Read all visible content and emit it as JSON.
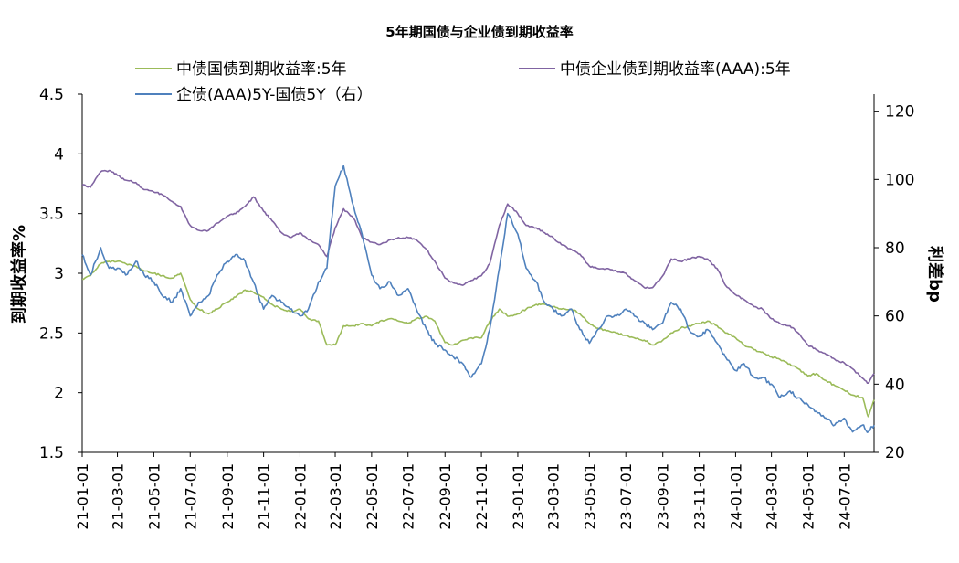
{
  "chart_data": {
    "type": "line",
    "title": "5年期国债与企业债到期收益率",
    "ylabel_left": "到期收益率%",
    "ylabel_right": "利差bp",
    "y_left": {
      "min": 1.5,
      "max": 4.5,
      "ticks": [
        "1.5",
        "2",
        "2.5",
        "3",
        "3.5",
        "4",
        "4.5"
      ]
    },
    "y_right": {
      "min": 20,
      "max": 125,
      "ticks": [
        "20",
        "40",
        "60",
        "80",
        "100",
        "120"
      ]
    },
    "x_ticks": [
      "21-01-01",
      "21-03-01",
      "21-05-01",
      "21-07-01",
      "21-09-01",
      "21-11-01",
      "22-01-01",
      "22-03-01",
      "22-05-01",
      "22-07-01",
      "22-09-01",
      "22-11-01",
      "23-01-01",
      "23-03-01",
      "23-05-01",
      "23-07-01",
      "23-09-01",
      "23-11-01",
      "24-01-01",
      "24-03-01",
      "24-05-01",
      "24-07-01"
    ],
    "x_range": [
      "2021-01-01",
      "2024-08-20"
    ],
    "legend_position": "top",
    "series": [
      {
        "name": "中债国债到期收益率:5年",
        "axis": "left",
        "color": "#9bbb59",
        "x": [
          "2021-01-01",
          "2021-01-15",
          "2021-02-01",
          "2021-02-15",
          "2021-03-01",
          "2021-03-15",
          "2021-04-01",
          "2021-04-15",
          "2021-05-01",
          "2021-05-15",
          "2021-06-01",
          "2021-06-15",
          "2021-07-01",
          "2021-07-15",
          "2021-08-01",
          "2021-08-15",
          "2021-09-01",
          "2021-09-15",
          "2021-10-01",
          "2021-10-15",
          "2021-11-01",
          "2021-11-15",
          "2021-12-01",
          "2021-12-15",
          "2022-01-01",
          "2022-01-15",
          "2022-02-01",
          "2022-02-15",
          "2022-03-01",
          "2022-03-15",
          "2022-04-01",
          "2022-04-15",
          "2022-05-01",
          "2022-05-15",
          "2022-06-01",
          "2022-06-15",
          "2022-07-01",
          "2022-07-15",
          "2022-08-01",
          "2022-08-15",
          "2022-09-01",
          "2022-09-15",
          "2022-10-01",
          "2022-10-15",
          "2022-11-01",
          "2022-11-15",
          "2022-12-01",
          "2022-12-15",
          "2023-01-01",
          "2023-01-15",
          "2023-02-01",
          "2023-02-15",
          "2023-03-01",
          "2023-03-15",
          "2023-04-01",
          "2023-04-15",
          "2023-05-01",
          "2023-05-15",
          "2023-06-01",
          "2023-06-15",
          "2023-07-01",
          "2023-07-15",
          "2023-08-01",
          "2023-08-15",
          "2023-09-01",
          "2023-09-15",
          "2023-10-01",
          "2023-10-15",
          "2023-11-01",
          "2023-11-15",
          "2023-12-01",
          "2023-12-15",
          "2024-01-01",
          "2024-01-15",
          "2024-02-01",
          "2024-02-15",
          "2024-03-01",
          "2024-03-15",
          "2024-04-01",
          "2024-04-15",
          "2024-05-01",
          "2024-05-15",
          "2024-06-01",
          "2024-06-15",
          "2024-07-01",
          "2024-07-15",
          "2024-08-01",
          "2024-08-10",
          "2024-08-20"
        ],
        "values": [
          2.95,
          2.98,
          3.08,
          3.1,
          3.1,
          3.08,
          3.06,
          3.02,
          3.0,
          2.98,
          2.96,
          3.0,
          2.78,
          2.7,
          2.66,
          2.7,
          2.76,
          2.8,
          2.86,
          2.84,
          2.8,
          2.74,
          2.7,
          2.68,
          2.7,
          2.62,
          2.6,
          2.4,
          2.4,
          2.56,
          2.56,
          2.58,
          2.56,
          2.6,
          2.62,
          2.6,
          2.58,
          2.62,
          2.64,
          2.6,
          2.42,
          2.4,
          2.44,
          2.46,
          2.46,
          2.6,
          2.7,
          2.64,
          2.66,
          2.7,
          2.74,
          2.74,
          2.72,
          2.7,
          2.7,
          2.66,
          2.58,
          2.54,
          2.52,
          2.5,
          2.48,
          2.46,
          2.44,
          2.4,
          2.44,
          2.5,
          2.54,
          2.56,
          2.58,
          2.6,
          2.56,
          2.5,
          2.46,
          2.4,
          2.36,
          2.34,
          2.3,
          2.28,
          2.24,
          2.2,
          2.14,
          2.16,
          2.1,
          2.06,
          2.02,
          1.98,
          1.96,
          1.8,
          1.94
        ]
      },
      {
        "name": "中债企业债到期收益率(AAA):5年",
        "axis": "left",
        "color": "#8064a2",
        "x": [
          "2021-01-01",
          "2021-01-15",
          "2021-02-01",
          "2021-02-15",
          "2021-03-01",
          "2021-03-15",
          "2021-04-01",
          "2021-04-15",
          "2021-05-01",
          "2021-05-15",
          "2021-06-01",
          "2021-06-15",
          "2021-07-01",
          "2021-07-15",
          "2021-08-01",
          "2021-08-15",
          "2021-09-01",
          "2021-09-15",
          "2021-10-01",
          "2021-10-15",
          "2021-11-01",
          "2021-11-15",
          "2021-12-01",
          "2021-12-15",
          "2022-01-01",
          "2022-01-15",
          "2022-02-01",
          "2022-02-15",
          "2022-03-01",
          "2022-03-15",
          "2022-04-01",
          "2022-04-15",
          "2022-05-01",
          "2022-05-15",
          "2022-06-01",
          "2022-06-15",
          "2022-07-01",
          "2022-07-15",
          "2022-08-01",
          "2022-08-15",
          "2022-09-01",
          "2022-09-15",
          "2022-10-01",
          "2022-10-15",
          "2022-11-01",
          "2022-11-15",
          "2022-12-01",
          "2022-12-15",
          "2023-01-01",
          "2023-01-15",
          "2023-02-01",
          "2023-02-15",
          "2023-03-01",
          "2023-03-15",
          "2023-04-01",
          "2023-04-15",
          "2023-05-01",
          "2023-05-15",
          "2023-06-01",
          "2023-06-15",
          "2023-07-01",
          "2023-07-15",
          "2023-08-01",
          "2023-08-15",
          "2023-09-01",
          "2023-09-15",
          "2023-10-01",
          "2023-10-15",
          "2023-11-01",
          "2023-11-15",
          "2023-12-01",
          "2023-12-15",
          "2024-01-01",
          "2024-01-15",
          "2024-02-01",
          "2024-02-15",
          "2024-03-01",
          "2024-03-15",
          "2024-04-01",
          "2024-04-15",
          "2024-05-01",
          "2024-05-15",
          "2024-06-01",
          "2024-06-15",
          "2024-07-01",
          "2024-07-15",
          "2024-08-01",
          "2024-08-10",
          "2024-08-20"
        ],
        "values": [
          3.74,
          3.72,
          3.85,
          3.86,
          3.82,
          3.78,
          3.76,
          3.7,
          3.68,
          3.66,
          3.6,
          3.56,
          3.4,
          3.36,
          3.36,
          3.42,
          3.48,
          3.5,
          3.56,
          3.64,
          3.52,
          3.44,
          3.34,
          3.3,
          3.34,
          3.28,
          3.24,
          3.14,
          3.38,
          3.54,
          3.46,
          3.3,
          3.26,
          3.24,
          3.28,
          3.3,
          3.3,
          3.28,
          3.2,
          3.1,
          2.96,
          2.92,
          2.9,
          2.94,
          2.98,
          3.08,
          3.4,
          3.58,
          3.5,
          3.4,
          3.38,
          3.34,
          3.3,
          3.24,
          3.2,
          3.16,
          3.06,
          3.04,
          3.04,
          3.02,
          3.0,
          2.94,
          2.88,
          2.88,
          2.98,
          3.12,
          3.1,
          3.12,
          3.14,
          3.12,
          3.04,
          2.9,
          2.82,
          2.78,
          2.72,
          2.7,
          2.62,
          2.58,
          2.56,
          2.5,
          2.4,
          2.36,
          2.32,
          2.28,
          2.25,
          2.2,
          2.12,
          2.08,
          2.16
        ]
      },
      {
        "name": "企债(AAA)5Y-国债5Y（右）",
        "axis": "right",
        "color": "#4f81bd",
        "x": [
          "2021-01-01",
          "2021-01-15",
          "2021-02-01",
          "2021-02-15",
          "2021-03-01",
          "2021-03-15",
          "2021-04-01",
          "2021-04-15",
          "2021-05-01",
          "2021-05-15",
          "2021-06-01",
          "2021-06-15",
          "2021-07-01",
          "2021-07-15",
          "2021-08-01",
          "2021-08-15",
          "2021-09-01",
          "2021-09-15",
          "2021-10-01",
          "2021-10-15",
          "2021-11-01",
          "2021-11-15",
          "2021-12-01",
          "2021-12-15",
          "2022-01-01",
          "2022-01-15",
          "2022-02-01",
          "2022-02-15",
          "2022-03-01",
          "2022-03-15",
          "2022-04-01",
          "2022-04-15",
          "2022-05-01",
          "2022-05-15",
          "2022-06-01",
          "2022-06-15",
          "2022-07-01",
          "2022-07-15",
          "2022-08-01",
          "2022-08-15",
          "2022-09-01",
          "2022-09-15",
          "2022-10-01",
          "2022-10-15",
          "2022-11-01",
          "2022-11-15",
          "2022-12-01",
          "2022-12-15",
          "2023-01-01",
          "2023-01-15",
          "2023-02-01",
          "2023-02-15",
          "2023-03-01",
          "2023-03-15",
          "2023-04-01",
          "2023-04-15",
          "2023-05-01",
          "2023-05-15",
          "2023-06-01",
          "2023-06-15",
          "2023-07-01",
          "2023-07-15",
          "2023-08-01",
          "2023-08-15",
          "2023-09-01",
          "2023-09-15",
          "2023-10-01",
          "2023-10-15",
          "2023-11-01",
          "2023-11-15",
          "2023-12-01",
          "2023-12-15",
          "2024-01-01",
          "2024-01-15",
          "2024-02-01",
          "2024-02-15",
          "2024-03-01",
          "2024-03-15",
          "2024-04-01",
          "2024-04-15",
          "2024-05-01",
          "2024-05-15",
          "2024-06-01",
          "2024-06-15",
          "2024-07-01",
          "2024-07-15",
          "2024-08-01",
          "2024-08-10",
          "2024-08-20"
        ],
        "values": [
          78,
          72,
          80,
          74,
          74,
          72,
          76,
          72,
          70,
          66,
          64,
          68,
          60,
          64,
          66,
          72,
          76,
          78,
          76,
          70,
          62,
          66,
          64,
          62,
          60,
          62,
          70,
          74,
          98,
          104,
          92,
          84,
          72,
          68,
          70,
          66,
          68,
          62,
          56,
          52,
          50,
          48,
          46,
          42,
          46,
          56,
          74,
          90,
          84,
          74,
          70,
          64,
          62,
          60,
          62,
          56,
          52,
          56,
          60,
          60,
          62,
          60,
          58,
          56,
          58,
          64,
          62,
          56,
          54,
          56,
          52,
          48,
          44,
          46,
          42,
          42,
          40,
          36,
          38,
          36,
          34,
          32,
          30,
          28,
          30,
          26,
          28,
          26,
          28
        ]
      }
    ]
  }
}
